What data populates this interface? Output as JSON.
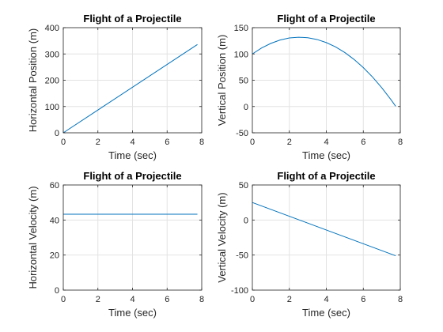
{
  "figure": {
    "line_color": "#0072bd",
    "grid": true
  },
  "chart_data": [
    {
      "type": "line",
      "title": "Flight of a Projectile",
      "xlabel": "Time (sec)",
      "ylabel": "Horizontal Position (m)",
      "xlim": [
        0,
        8
      ],
      "ylim": [
        0,
        400
      ],
      "xticks": [
        0,
        2,
        4,
        6,
        8
      ],
      "yticks": [
        0,
        100,
        200,
        300,
        400
      ],
      "series": [
        {
          "x": [
            0,
            7.75
          ],
          "y": [
            0,
            336
          ]
        }
      ]
    },
    {
      "type": "line",
      "title": "Flight of a Projectile",
      "xlabel": "Time (sec)",
      "ylabel": "Vertical Position (m)",
      "xlim": [
        0,
        8
      ],
      "ylim": [
        -50,
        150
      ],
      "xticks": [
        0,
        2,
        4,
        6,
        8
      ],
      "yticks": [
        -50,
        0,
        50,
        100,
        150
      ],
      "series": [
        {
          "x": [
            0,
            0.5,
            1,
            1.5,
            2,
            2.5,
            3,
            3.5,
            4,
            4.5,
            5,
            5.5,
            6,
            6.5,
            7,
            7.5,
            7.75
          ],
          "y": [
            100,
            111.3,
            120.1,
            126.5,
            130.4,
            131.8,
            130.9,
            127.5,
            121.6,
            113.4,
            102.7,
            89.6,
            74,
            56.1,
            35.7,
            12.9,
            0.5
          ]
        }
      ]
    },
    {
      "type": "line",
      "title": "Flight of a Projectile",
      "xlabel": "Time (sec)",
      "ylabel": "Horizontal Velocity (m)",
      "xlim": [
        0,
        8
      ],
      "ylim": [
        0,
        60
      ],
      "xticks": [
        0,
        2,
        4,
        6,
        8
      ],
      "yticks": [
        0,
        20,
        40,
        60
      ],
      "series": [
        {
          "x": [
            0,
            7.75
          ],
          "y": [
            43.3,
            43.3
          ]
        }
      ]
    },
    {
      "type": "line",
      "title": "Flight of a Projectile",
      "xlabel": "Time (sec)",
      "ylabel": "Vertical Velocity (m)",
      "xlim": [
        0,
        8
      ],
      "ylim": [
        -100,
        50
      ],
      "xticks": [
        0,
        2,
        4,
        6,
        8
      ],
      "yticks": [
        -100,
        -50,
        0,
        50
      ],
      "series": [
        {
          "x": [
            0,
            7.75
          ],
          "y": [
            25,
            -51
          ]
        }
      ]
    }
  ]
}
